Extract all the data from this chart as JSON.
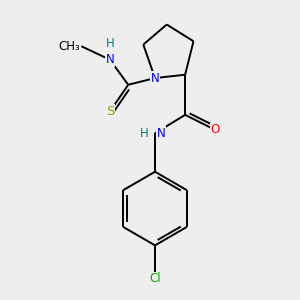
{
  "background_color": "#eeeeee",
  "bond_color": "#000000",
  "figsize": [
    3.0,
    3.0
  ],
  "dpi": 100,
  "lw": 1.4,
  "atom_colors": {
    "N": "#0000ff",
    "H": "#008080",
    "S": "#999900",
    "O": "#ff0000",
    "Cl": "#00aa00",
    "C": "#000000"
  }
}
